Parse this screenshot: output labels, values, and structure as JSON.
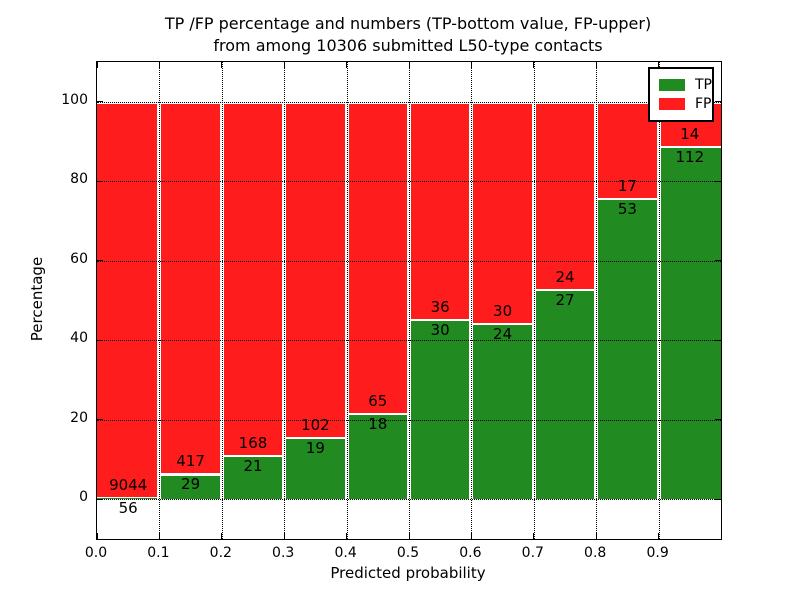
{
  "title": {
    "line1": "TP /FP percentage and numbers (TP-bottom value, FP-upper)",
    "line2": "from among 10306 submitted L50-type contacts"
  },
  "chart_data": {
    "type": "bar",
    "stacked": true,
    "normalized_to_percent": true,
    "title": "TP /FP percentage and numbers (TP-bottom value, FP-upper) from among 10306 submitted L50-type contacts",
    "xlabel": "Predicted probability",
    "ylabel": "Percentage",
    "categories": [
      "0.0-0.1",
      "0.1-0.2",
      "0.2-0.3",
      "0.3-0.4",
      "0.4-0.5",
      "0.5-0.6",
      "0.6-0.7",
      "0.7-0.8",
      "0.8-0.9",
      "0.9-1.0"
    ],
    "series": [
      {
        "name": "TP",
        "color": "#218a21",
        "counts": [
          56,
          29,
          21,
          19,
          18,
          30,
          24,
          27,
          53,
          112
        ]
      },
      {
        "name": "FP",
        "color": "#ff1c1c",
        "counts": [
          9044,
          417,
          168,
          102,
          65,
          36,
          30,
          24,
          17,
          14
        ]
      }
    ],
    "total_contacts": 10306,
    "x_ticks": [
      "0.0",
      "0.1",
      "0.2",
      "0.3",
      "0.4",
      "0.5",
      "0.6",
      "0.7",
      "0.8",
      "0.9"
    ],
    "y_ticks": [
      0,
      20,
      40,
      60,
      80,
      100
    ],
    "xlim": [
      0.0,
      1.0
    ],
    "ylim": [
      -10,
      110
    ],
    "grid": "dotted",
    "legend": {
      "position": "upper right",
      "entries": [
        {
          "label": "TP",
          "color": "#218a21"
        },
        {
          "label": "FP",
          "color": "#ff1c1c"
        }
      ]
    }
  }
}
